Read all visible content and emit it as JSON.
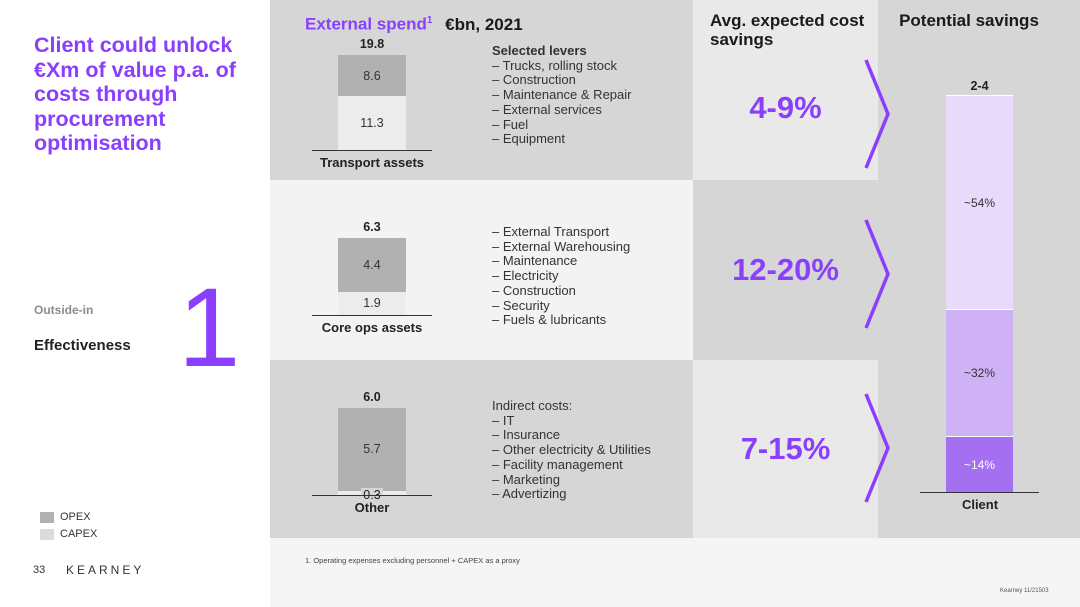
{
  "headline": "Client could unlock €Xm of value p.a. of costs through procurement optimisation",
  "section": {
    "label": "Outside-in",
    "title": "Effectiveness",
    "number": "1"
  },
  "legend": [
    {
      "label": "OPEX",
      "color": "#b1b1b1"
    },
    {
      "label": "CAPEX",
      "color": "#dcdcdc"
    }
  ],
  "footer": {
    "page": "33",
    "logo": "KEARNEY",
    "note": "1. Operating expenses excluding personnel + CAPEX as a proxy",
    "stamp": "Kearney 11/21503"
  },
  "headers": {
    "spend": "External spend",
    "spend_sup": "1",
    "unit": "€bn, 2021",
    "savings_avg": "Avg. expected cost savings",
    "potential": "Potential savings"
  },
  "colors": {
    "accent": "#8a3ffc",
    "opex": "#b1b1b1",
    "capex": "#ececec",
    "panel_dark": "#d6d6d6",
    "panel_light": "#f3f3f3"
  },
  "chart_data": [
    {
      "type": "bar",
      "stacked": true,
      "categories": [
        "Transport assets",
        "Core ops assets",
        "Other"
      ],
      "series": [
        {
          "name": "OPEX",
          "values": [
            8.6,
            4.4,
            5.7
          ]
        },
        {
          "name": "CAPEX",
          "values": [
            11.3,
            1.9,
            0.3
          ]
        }
      ],
      "totals": [
        19.8,
        6.3,
        6.0
      ],
      "title": "External spend",
      "subtitle": "€bn, 2021"
    },
    {
      "type": "bar",
      "stacked": true,
      "categories": [
        "Client"
      ],
      "series": [
        {
          "name": "",
          "values": [
            14
          ],
          "label": "~14%"
        },
        {
          "name": "",
          "values": [
            32
          ],
          "label": "~32%"
        },
        {
          "name": "",
          "values": [
            54
          ],
          "label": "~54%"
        }
      ],
      "total_label": "2-4",
      "title": "Potential savings"
    }
  ],
  "rows": [
    {
      "name": "Transport assets",
      "lever_title": "Selected levers",
      "lever_title_bold": true,
      "levers": [
        "Trucks, rolling stock",
        "Construction",
        "Maintenance & Repair",
        "External services",
        "Fuel",
        "Equipment"
      ],
      "savings": "4-9%"
    },
    {
      "name": "Core ops assets",
      "lever_title": "",
      "lever_title_bold": false,
      "levers": [
        "External Transport",
        "External Warehousing",
        "Maintenance",
        "Electricity",
        "Construction",
        "Security",
        "Fuels & lubricants"
      ],
      "savings": "12-20%"
    },
    {
      "name": "Other",
      "lever_title": "Indirect costs:",
      "lever_title_bold": false,
      "levers": [
        "IT",
        "Insurance",
        "Other electricity & Utilities",
        "Facility management",
        "Marketing",
        "Advertizing"
      ],
      "savings": "7-15%"
    }
  ]
}
